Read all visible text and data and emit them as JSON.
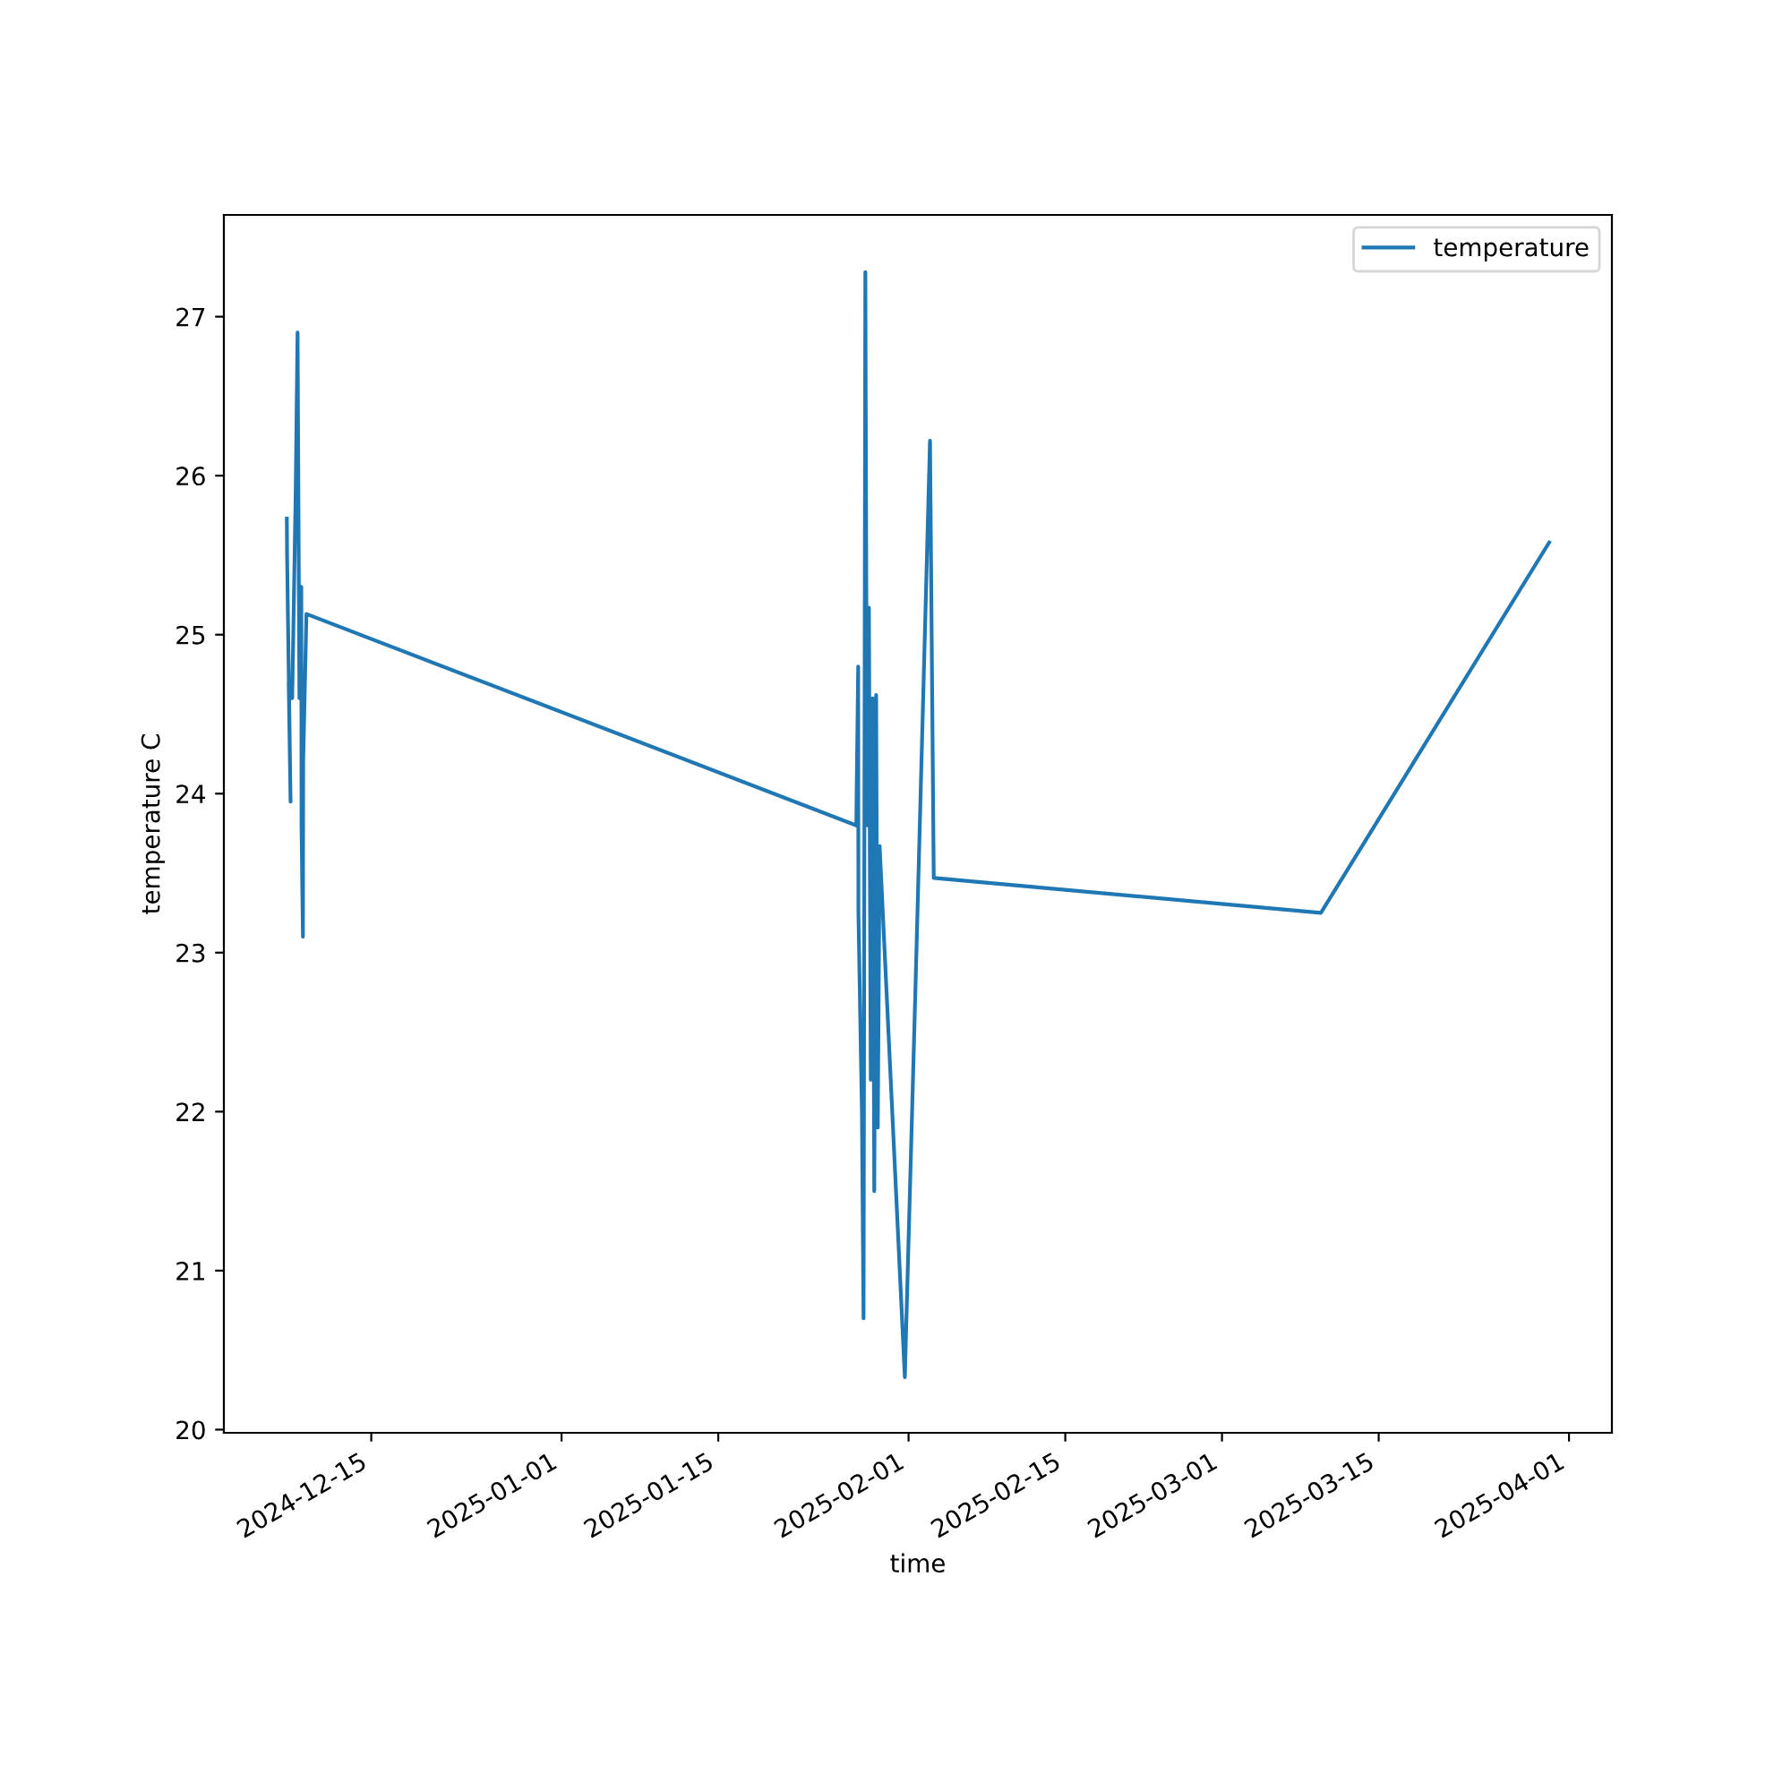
{
  "chart_data": {
    "type": "line",
    "xlabel": "time",
    "ylabel": "temperature C",
    "legend": "top right",
    "grid": false,
    "xlim": [
      "2024-12-01T20:00",
      "2025-04-04T20:00"
    ],
    "xticks": [
      "2024-12-15",
      "2025-01-01",
      "2025-01-15",
      "2025-02-01",
      "2025-02-15",
      "2025-03-01",
      "2025-03-15",
      "2025-04-01"
    ],
    "ylim": [
      19.98,
      27.64
    ],
    "yticks": [
      20,
      21,
      22,
      23,
      24,
      25,
      26,
      27
    ],
    "series": [
      {
        "name": "temperature",
        "color": "#1f77b4",
        "x": [
          "2024-12-07T11:00",
          "2024-12-07T11:30",
          "2024-12-07T19:00",
          "2024-12-07T15:00",
          "2024-12-07T22:30",
          "2024-12-08T06:00",
          "2024-12-08T10:00",
          "2024-12-08T14:00",
          "2024-12-08T18:00",
          "2024-12-08T18:30",
          "2024-12-08T21:30",
          "2024-12-08T22:00",
          "2024-12-09T05:00",
          "2025-01-27T08:00",
          "2025-01-27T08:30",
          "2025-01-27T12:00",
          "2025-01-27T12:30",
          "2025-01-27T20:00",
          "2025-01-27T23:30",
          "2025-01-28T03:20",
          "2025-01-28T07:00",
          "2025-01-28T11:00",
          "2025-01-28T15:00",
          "2025-01-28T19:00",
          "2025-01-28T22:30",
          "2025-01-29T02:30",
          "2025-01-29T06:00",
          "2025-01-29T10:00",
          "2025-01-31T16:00",
          "2025-02-01T15:00",
          "2025-02-02T22:00",
          "2025-02-03T06:00",
          "2025-03-09T20:00",
          "2025-03-30T05:30"
        ],
        "values": [
          25.73,
          25.5,
          23.95,
          24.7,
          24.6,
          25.9,
          26.9,
          24.6,
          25.3,
          23.8,
          23.1,
          24.2,
          25.13,
          23.8,
          23.95,
          24.8,
          23.25,
          22.0,
          20.7,
          27.28,
          23.8,
          25.17,
          22.2,
          24.6,
          21.5,
          24.62,
          21.9,
          23.67,
          20.33,
          22.8,
          26.22,
          23.47,
          23.25,
          25.58
        ]
      }
    ]
  }
}
